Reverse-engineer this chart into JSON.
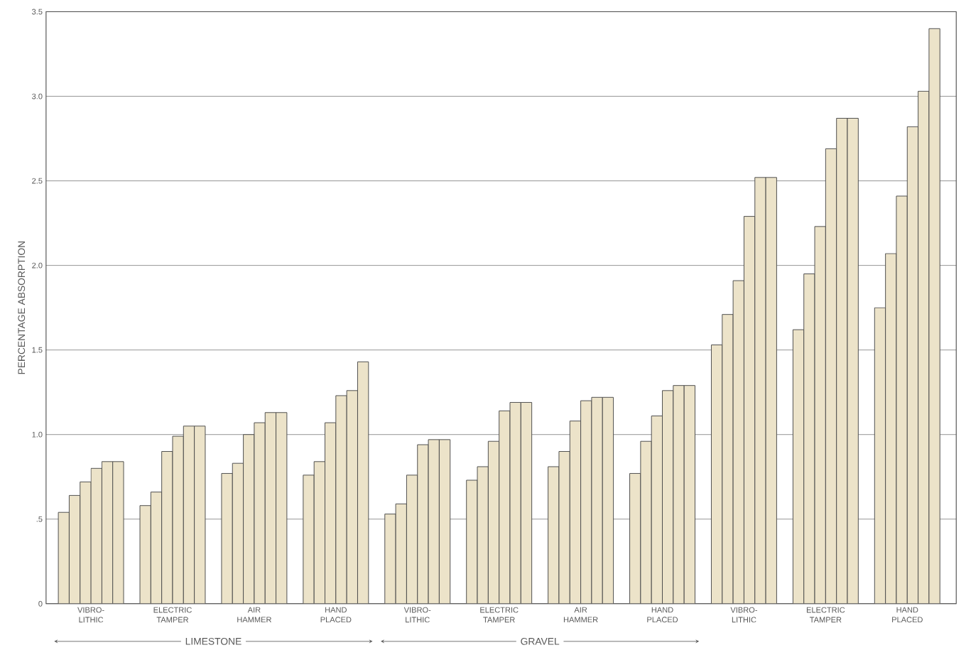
{
  "chart_data": {
    "type": "bar",
    "ylabel": "PERCENTAGE ABSORPTION",
    "categories": [
      "VIBRO-LITHIC",
      "ELECTRIC TAMPER",
      "AIR HAMMER",
      "HAND PLACED",
      "VIBRO-LITHIC",
      "ELECTRIC TAMPER",
      "AIR HAMMER",
      "HAND PLACED",
      "VIBRO-LITHIC",
      "ELECTRIC TAMPER",
      "HAND PLACED"
    ],
    "series": [
      {
        "color": "#ece3c9",
        "values": [
          0.54,
          0.58,
          0.77,
          0.76,
          0.53,
          0.73,
          0.81,
          0.77,
          1.53,
          1.62,
          1.75
        ]
      },
      {
        "color": "#ece3c9",
        "values": [
          0.64,
          0.66,
          0.83,
          0.84,
          0.59,
          0.81,
          0.9,
          0.96,
          1.71,
          1.95,
          2.07
        ]
      },
      {
        "color": "#ece3c9",
        "values": [
          0.72,
          0.9,
          1.0,
          1.07,
          0.76,
          0.96,
          1.08,
          1.11,
          1.91,
          2.23,
          2.41
        ]
      },
      {
        "color": "#ece3c9",
        "values": [
          0.8,
          0.99,
          1.07,
          1.23,
          0.94,
          1.14,
          1.2,
          1.26,
          2.29,
          2.69,
          2.82
        ]
      },
      {
        "color": "#ece3c9",
        "values": [
          0.84,
          1.05,
          1.13,
          1.26,
          0.97,
          1.19,
          1.22,
          1.29,
          2.52,
          2.87,
          3.03
        ]
      },
      {
        "color": "#ece3c9",
        "values": [
          0.84,
          1.05,
          1.13,
          1.43,
          0.97,
          1.19,
          1.22,
          1.29,
          2.52,
          2.87,
          3.4
        ]
      }
    ],
    "ylim": [
      0,
      3.5
    ],
    "yticks": [
      {
        "value": 0,
        "label": "0"
      },
      {
        "value": 0.5,
        "label": ".5"
      },
      {
        "value": 1.0,
        "label": "1.0"
      },
      {
        "value": 1.5,
        "label": "1.5"
      },
      {
        "value": 2.0,
        "label": "2.0"
      },
      {
        "value": 2.5,
        "label": "2.5"
      },
      {
        "value": 3.0,
        "label": "3.0"
      },
      {
        "value": 3.5,
        "label": "3.5"
      }
    ],
    "grid": "y",
    "annotations": [
      "LIMESTONE",
      "GRAVEL"
    ]
  }
}
